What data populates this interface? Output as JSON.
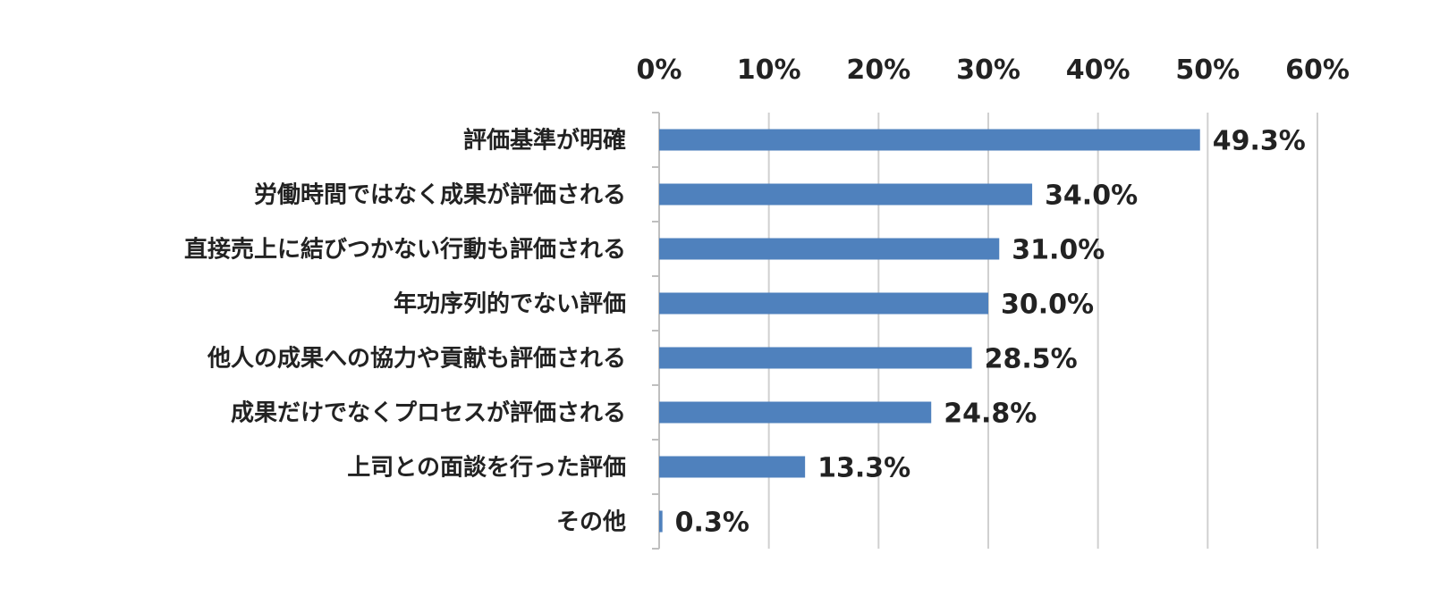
{
  "chart_data": {
    "type": "bar",
    "orientation": "horizontal",
    "categories": [
      "評価基準が明確",
      "労働時間ではなく成果が評価される",
      "直接売上に結びつかない行動も評価される",
      "年功序列的でない評価",
      "他人の成果への協力や貢献も評価される",
      "成果だけでなくプロセスが評価される",
      "上司との面談を行った評価",
      "その他"
    ],
    "values": [
      49.3,
      34.0,
      31.0,
      30.0,
      28.5,
      24.8,
      13.3,
      0.3
    ],
    "value_labels": [
      "49.3%",
      "34.0%",
      "31.0%",
      "30.0%",
      "28.5%",
      "24.8%",
      "13.3%",
      "0.3%"
    ],
    "x_ticks": [
      0,
      10,
      20,
      30,
      40,
      50,
      60
    ],
    "x_tick_labels": [
      "0%",
      "10%",
      "20%",
      "30%",
      "40%",
      "50%",
      "60%"
    ],
    "xlim": [
      0,
      60
    ],
    "x_axis_position": "top",
    "grid": true,
    "bar_color": "#4F81BD",
    "grid_color": "#D0D0D0",
    "title": "",
    "xlabel": "",
    "ylabel": ""
  }
}
